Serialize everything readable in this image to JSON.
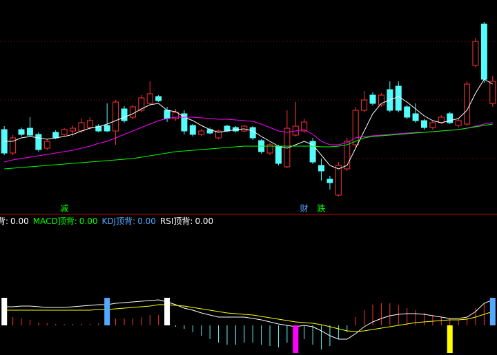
{
  "chart_data": [
    {
      "type": "candlestick",
      "up_color": "#ff3232",
      "down_color": "#54fcfc",
      "ylim": [
        0,
        310
      ],
      "open": [
        122,
        88,
        122,
        124,
        115,
        95,
        118,
        115,
        120,
        120,
        125,
        127,
        128,
        120,
        152,
        140,
        150,
        160,
        170,
        150,
        138,
        145,
        128,
        115,
        122,
        110,
        127,
        125,
        120,
        125,
        106,
        88,
        97,
        68,
        114,
        120,
        105,
        70,
        50,
        27,
        65,
        100,
        150,
        172,
        158,
        180,
        185,
        155,
        145,
        135,
        125,
        132,
        145,
        128,
        130,
        215,
        275,
        160
      ],
      "high": [
        127,
        114,
        125,
        140,
        118,
        108,
        121,
        124,
        128,
        138,
        140,
        130,
        160,
        165,
        156,
        158,
        172,
        192,
        172,
        155,
        152,
        150,
        130,
        123,
        125,
        122,
        129,
        127,
        129,
        127,
        108,
        103,
        100,
        150,
        162,
        138,
        110,
        80,
        55,
        75,
        110,
        155,
        178,
        176,
        175,
        192,
        192,
        158,
        160,
        138,
        135,
        143,
        148,
        138,
        192,
        255,
        278,
        200
      ],
      "low": [
        85,
        85,
        112,
        112,
        90,
        92,
        108,
        113,
        112,
        117,
        122,
        118,
        118,
        100,
        132,
        137,
        147,
        157,
        162,
        133,
        135,
        115,
        112,
        112,
        115,
        108,
        118,
        118,
        118,
        107,
        87,
        85,
        70,
        66,
        112,
        117,
        72,
        48,
        35,
        25,
        62,
        97,
        147,
        157,
        155,
        147,
        147,
        137,
        132,
        122,
        122,
        130,
        130,
        125,
        127,
        212,
        190,
        155
      ],
      "close": [
        88,
        110,
        115,
        114,
        93,
        105,
        110,
        122,
        124,
        132,
        135,
        120,
        120,
        162,
        135,
        155,
        168,
        174,
        164,
        138,
        147,
        120,
        115,
        120,
        117,
        120,
        120,
        120,
        127,
        110,
        90,
        100,
        73,
        124,
        127,
        133,
        75,
        62,
        45,
        70,
        105,
        150,
        165,
        160,
        172,
        150,
        150,
        140,
        135,
        125,
        132,
        140,
        132,
        135,
        188,
        250,
        195,
        192
      ],
      "series": [
        {
          "color": "#ffffff",
          "values": [
            105,
            105,
            110,
            112,
            110,
            108,
            110,
            112,
            115,
            120,
            124,
            126,
            130,
            135,
            140,
            145,
            152,
            158,
            160,
            150,
            148,
            140,
            135,
            128,
            122,
            118,
            120,
            122,
            123,
            120,
            112,
            105,
            98,
            95,
            100,
            105,
            100,
            85,
            70,
            65,
            70,
            95,
            120,
            145,
            160,
            165,
            170,
            162,
            152,
            142,
            135,
            132,
            135,
            138,
            150,
            175,
            195,
            188
          ]
        },
        {
          "color": "#ff00ff",
          "values": [
            75,
            78,
            80,
            82,
            84,
            86,
            88,
            90,
            92,
            95,
            98,
            102,
            105,
            110,
            115,
            120,
            125,
            130,
            135,
            138,
            140,
            140,
            140,
            139,
            138,
            137,
            137,
            136,
            135,
            134,
            130,
            125,
            120,
            118,
            120,
            122,
            115,
            105,
            100,
            100,
            103,
            110,
            112,
            113,
            114,
            115,
            116,
            117,
            118,
            118,
            119,
            120,
            121,
            122,
            124,
            127,
            130,
            132
          ]
        },
        {
          "color": "#00ff00",
          "values": [
            65,
            66,
            67,
            68,
            69,
            70,
            71,
            72,
            73,
            74,
            75,
            76,
            77,
            78,
            79,
            80,
            82,
            84,
            86,
            88,
            90,
            91,
            92,
            93,
            94,
            95,
            96,
            97,
            98,
            98,
            98,
            98,
            98,
            98,
            98,
            98,
            98,
            97,
            97,
            98,
            100,
            105,
            110,
            112,
            113,
            114,
            115,
            116,
            117,
            118,
            119,
            120,
            121,
            122,
            124,
            126,
            128,
            130
          ]
        }
      ],
      "annotations": [
        {
          "text": "减",
          "index": 7,
          "color": "#00ff00"
        },
        {
          "text": "财",
          "index": 35,
          "color": "#54a8ff"
        },
        {
          "text": "跌",
          "index": 37,
          "color": "#00ff00"
        }
      ]
    },
    {
      "type": "macd",
      "indicators": [
        {
          "name": "背:",
          "value": "0.00",
          "color": "#ffffff"
        },
        {
          "name": "MACD顶背:",
          "value": "0.00",
          "color": "#00ff00"
        },
        {
          "name": "KDJ顶背:",
          "value": "0.00",
          "color": "#54a8ff"
        },
        {
          "name": "RSI顶背:",
          "value": "0.00",
          "color": "#ffffff"
        }
      ],
      "ylim": [
        -40,
        140
      ],
      "up_color": "#ff3232",
      "down_color": "#54fcfc",
      "values": [
        10,
        12,
        10,
        8,
        4,
        3,
        2,
        2,
        2,
        2,
        2,
        3,
        5,
        10,
        10,
        10,
        12,
        15,
        15,
        2,
        -2,
        -5,
        -10,
        -15,
        -20,
        -25,
        -28,
        -28,
        -25,
        -25,
        -28,
        -30,
        -32,
        -25,
        -22,
        -20,
        -28,
        -35,
        -30,
        -20,
        -10,
        12,
        22,
        30,
        32,
        32,
        30,
        25,
        22,
        18,
        15,
        12,
        10,
        8,
        12,
        25,
        32,
        30
      ],
      "series": [
        {
          "color": "#ffffff",
          "values": [
            27,
            27,
            28,
            28,
            27,
            26,
            26,
            26,
            27,
            28,
            29,
            30,
            30,
            32,
            33,
            34,
            35,
            36,
            37,
            34,
            30,
            25,
            22,
            18,
            15,
            12,
            12,
            12,
            12,
            10,
            8,
            5,
            2,
            0,
            -2,
            0,
            -2,
            -8,
            -15,
            -20,
            -20,
            -12,
            -2,
            5,
            10,
            14,
            16,
            17,
            17,
            16,
            14,
            12,
            10,
            10,
            12,
            20,
            32,
            37
          ]
        },
        {
          "color": "#ffff00",
          "values": [
            22,
            22,
            22,
            22,
            22,
            22,
            22,
            22,
            22,
            22,
            22,
            23,
            23,
            24,
            25,
            26,
            27,
            28,
            30,
            30,
            29,
            28,
            26,
            24,
            22,
            20,
            18,
            17,
            16,
            15,
            13,
            11,
            9,
            7,
            5,
            4,
            3,
            1,
            -2,
            -5,
            -8,
            -9,
            -8,
            -6,
            -4,
            -2,
            0,
            2,
            4,
            5,
            6,
            7,
            8,
            8,
            9,
            12,
            16,
            20
          ]
        }
      ],
      "signals": [
        {
          "index": 0,
          "value": 40,
          "color": "#ffffff"
        },
        {
          "index": 12,
          "value": 40,
          "color": "#54a8ff"
        },
        {
          "index": 19,
          "value": 40,
          "color": "#ffffff"
        },
        {
          "index": 34,
          "value": -40,
          "color": "#ff00ff"
        },
        {
          "index": 52,
          "value": -40,
          "color": "#ffff00"
        },
        {
          "index": 57,
          "value": 40,
          "color": "#54a8ff"
        }
      ]
    }
  ]
}
